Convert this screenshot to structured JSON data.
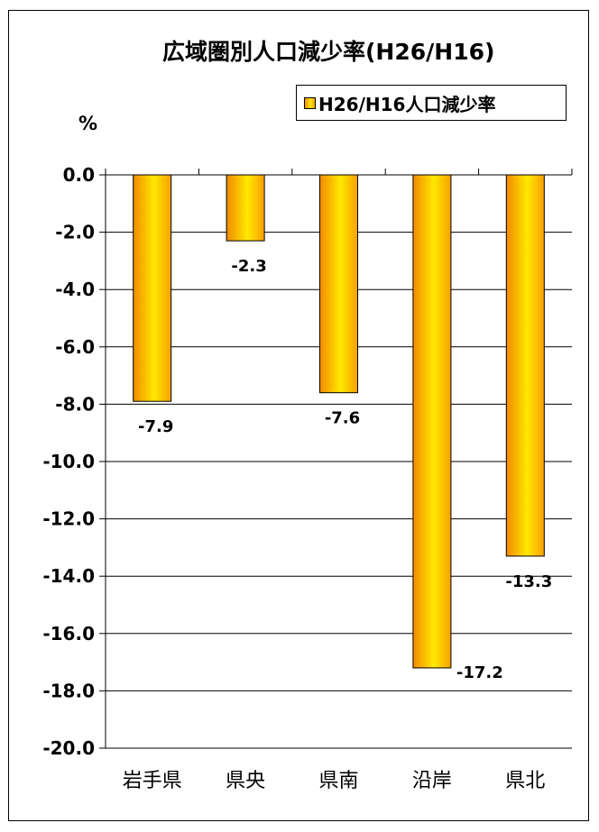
{
  "chart_data": {
    "type": "bar",
    "title": "広域圏別人口減少率(H26/H16)",
    "ylabel": "%",
    "xlabel": "",
    "categories": [
      "岩手県",
      "県央",
      "県南",
      "沿岸",
      "県北"
    ],
    "series": [
      {
        "name": "H26/H16人口減少率",
        "values": [
          -7.9,
          -2.3,
          -7.6,
          -17.2,
          -13.3
        ]
      }
    ],
    "data_labels": [
      "-7.9",
      "-2.3",
      "-7.6",
      "-17.2",
      "-13.3"
    ],
    "ylim": [
      -20,
      0
    ],
    "ytick_step": 2,
    "ytick_labels": [
      "0.0",
      "-2.0",
      "-4.0",
      "-6.0",
      "-8.0",
      "-10.0",
      "-12.0",
      "-14.0",
      "-16.0",
      "-18.0",
      "-20.0"
    ],
    "grid": true,
    "legend_position": "top-right",
    "bar_colors": {
      "edge": "#f28a00",
      "center": "#ffe800",
      "outline": "#000000"
    }
  }
}
